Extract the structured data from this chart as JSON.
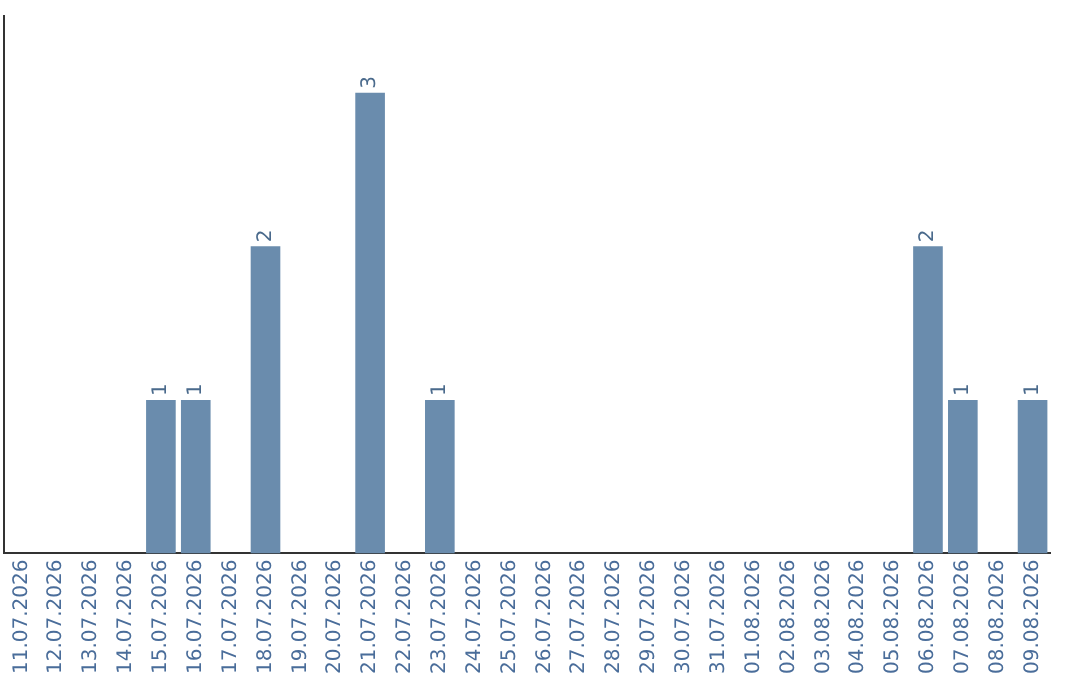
{
  "chart_data": {
    "type": "bar",
    "categories": [
      "11.07.2026",
      "12.07.2026",
      "13.07.2026",
      "14.07.2026",
      "15.07.2026",
      "16.07.2026",
      "17.07.2026",
      "18.07.2026",
      "19.07.2026",
      "20.07.2026",
      "21.07.2026",
      "22.07.2026",
      "23.07.2026",
      "24.07.2026",
      "25.07.2026",
      "26.07.2026",
      "27.07.2026",
      "28.07.2026",
      "29.07.2026",
      "30.07.2026",
      "31.07.2026",
      "01.08.2026",
      "02.08.2026",
      "03.08.2026",
      "04.08.2026",
      "05.08.2026",
      "06.08.2026",
      "07.08.2026",
      "08.08.2026",
      "09.08.2026"
    ],
    "values": [
      0,
      0,
      0,
      0,
      1,
      1,
      0,
      2,
      0,
      0,
      3,
      0,
      1,
      0,
      0,
      0,
      0,
      0,
      0,
      0,
      0,
      0,
      0,
      0,
      0,
      0,
      2,
      1,
      0,
      1
    ],
    "value_labels": [
      null,
      null,
      null,
      null,
      "1",
      "1",
      null,
      "2",
      null,
      null,
      "3",
      null,
      "1",
      null,
      null,
      null,
      null,
      null,
      null,
      null,
      null,
      null,
      null,
      null,
      null,
      null,
      "2",
      "1",
      null,
      "1"
    ],
    "color": "#6a8cad",
    "grid": false,
    "legend": false,
    "tick_labels": "x"
  }
}
